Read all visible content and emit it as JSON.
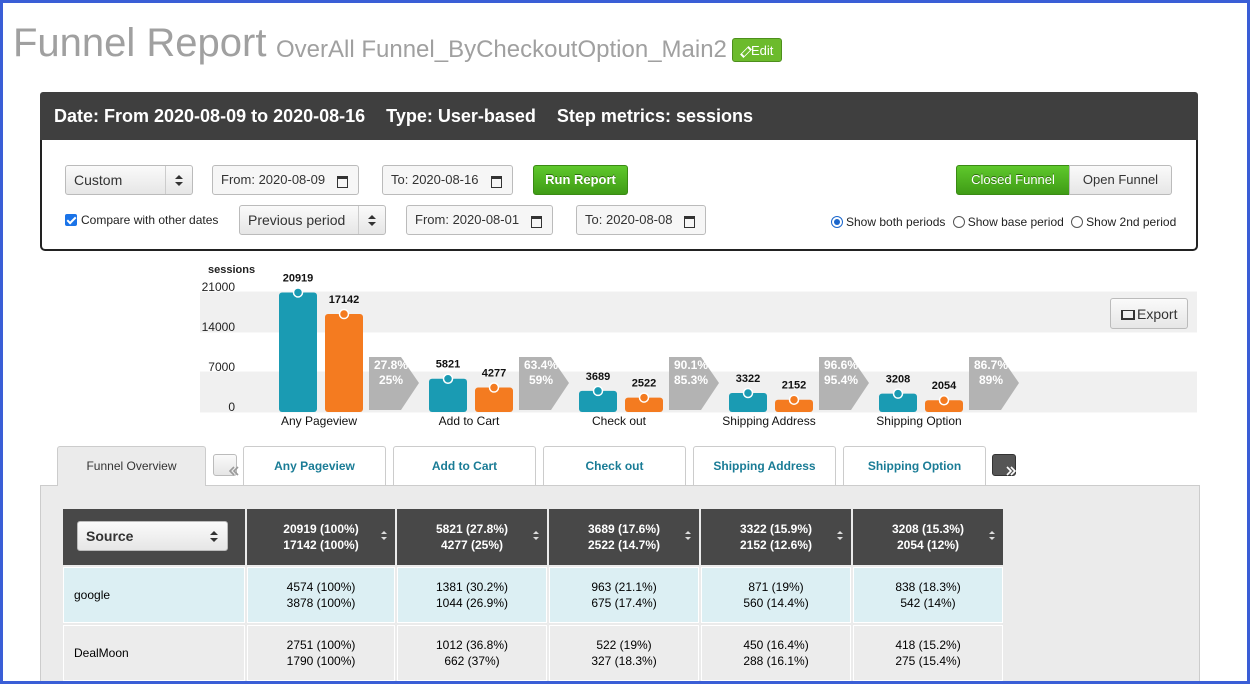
{
  "header": {
    "title": "Funnel Report",
    "subtitle": "OverAll Funnel_ByCheckoutOption_Main2",
    "edit": "Edit"
  },
  "summary": {
    "date": "Date: From 2020-08-09 to 2020-08-16",
    "type": "Type: User-based",
    "metrics": "Step metrics: sessions"
  },
  "controls": {
    "range": "Custom",
    "from_label": "From:",
    "from": "2020-08-09",
    "to_label": "To:",
    "to": "2020-08-16",
    "run": "Run Report",
    "compare": "Compare with other dates",
    "period": "Previous period",
    "from2": "2020-08-01",
    "to2": "2020-08-08",
    "closed": "Closed Funnel",
    "open": "Open Funnel",
    "radios": [
      "Show both periods",
      "Show base period",
      "Show 2nd period"
    ]
  },
  "chart_data": {
    "type": "bar",
    "y_label": "sessions",
    "categories": [
      "Any Pageview",
      "Add to Cart",
      "Check out",
      "Shipping Address",
      "Shipping Option"
    ],
    "series": [
      {
        "color": "#1a9bb3",
        "values": [
          20919,
          5821,
          3689,
          3322,
          3208
        ]
      },
      {
        "color": "#f47b20",
        "values": [
          17142,
          4277,
          2522,
          2152,
          2054
        ]
      }
    ],
    "ylim": [
      0,
      21000
    ],
    "yticks": [
      0,
      7000,
      14000,
      21000
    ],
    "conversion_labels": [
      [
        "27.8%",
        "25%"
      ],
      [
        "63.4%",
        "59%"
      ],
      [
        "90.1%",
        "85.3%"
      ],
      [
        "96.6%",
        "95.4%"
      ],
      [
        "86.7%",
        "89%"
      ]
    ]
  },
  "export": "Export",
  "tabs": {
    "overview": "Funnel Overview",
    "steps": [
      "Any Pageview",
      "Add to Cart",
      "Check out",
      "Shipping Address",
      "Shipping Option"
    ]
  },
  "table": {
    "source": "Source",
    "header": [
      [
        "20919 (100%)",
        "17142 (100%)"
      ],
      [
        "5821 (27.8%)",
        "4277 (25%)"
      ],
      [
        "3689 (17.6%)",
        "2522 (14.7%)"
      ],
      [
        "3322 (15.9%)",
        "2152 (12.6%)"
      ],
      [
        "3208 (15.3%)",
        "2054 (12%)"
      ]
    ],
    "rows": [
      {
        "source": "google",
        "cells": [
          [
            "4574 (100%)",
            "3878 (100%)"
          ],
          [
            "1381 (30.2%)",
            "1044 (26.9%)"
          ],
          [
            "963 (21.1%)",
            "675 (17.4%)"
          ],
          [
            "871 (19%)",
            "560 (14.4%)"
          ],
          [
            "838 (18.3%)",
            "542 (14%)"
          ]
        ]
      },
      {
        "source": "DealMoon",
        "cells": [
          [
            "2751 (100%)",
            "1790 (100%)"
          ],
          [
            "1012 (36.8%)",
            "662 (37%)"
          ],
          [
            "522 (19%)",
            "327 (18.3%)"
          ],
          [
            "450 (16.4%)",
            "288 (16.1%)"
          ],
          [
            "418 (15.2%)",
            "275 (15.4%)"
          ]
        ]
      }
    ]
  }
}
